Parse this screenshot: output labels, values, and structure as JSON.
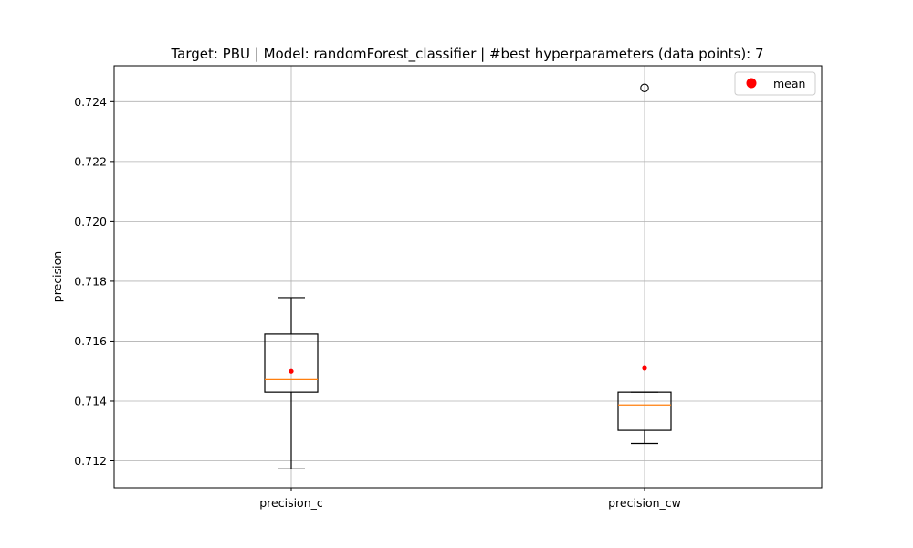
{
  "chart_data": {
    "type": "boxplot",
    "title": "Target: PBU | Model: randomForest_classifier | #best hyperparameters (data points): 7",
    "xlabel": "",
    "ylabel": "precision",
    "ylim": [
      0.7111,
      0.7252
    ],
    "yticks": [
      0.712,
      0.714,
      0.716,
      0.718,
      0.72,
      0.722,
      0.724
    ],
    "ytick_labels": [
      "0.712",
      "0.714",
      "0.716",
      "0.718",
      "0.720",
      "0.722",
      "0.724"
    ],
    "grid": true,
    "legend": {
      "position": "top-right",
      "entries": [
        {
          "label": "mean",
          "color": "#ff0000"
        }
      ]
    },
    "categories": [
      "precision_c",
      "precision_cw"
    ],
    "boxes": [
      {
        "name": "precision_c",
        "whisker_low": 0.71173,
        "q1": 0.7143,
        "median": 0.71472,
        "q3": 0.71623,
        "whisker_high": 0.71745,
        "mean": 0.715,
        "outliers": []
      },
      {
        "name": "precision_cw",
        "whisker_low": 0.71258,
        "q1": 0.71302,
        "median": 0.71387,
        "q3": 0.7143,
        "whisker_high": 0.7143,
        "mean": 0.7151,
        "outliers": [
          0.72446
        ]
      }
    ],
    "colors": {
      "box": "#000000",
      "median": "#ff7f0e",
      "mean": "#ff0000",
      "grid": "#b0b0b0"
    }
  }
}
